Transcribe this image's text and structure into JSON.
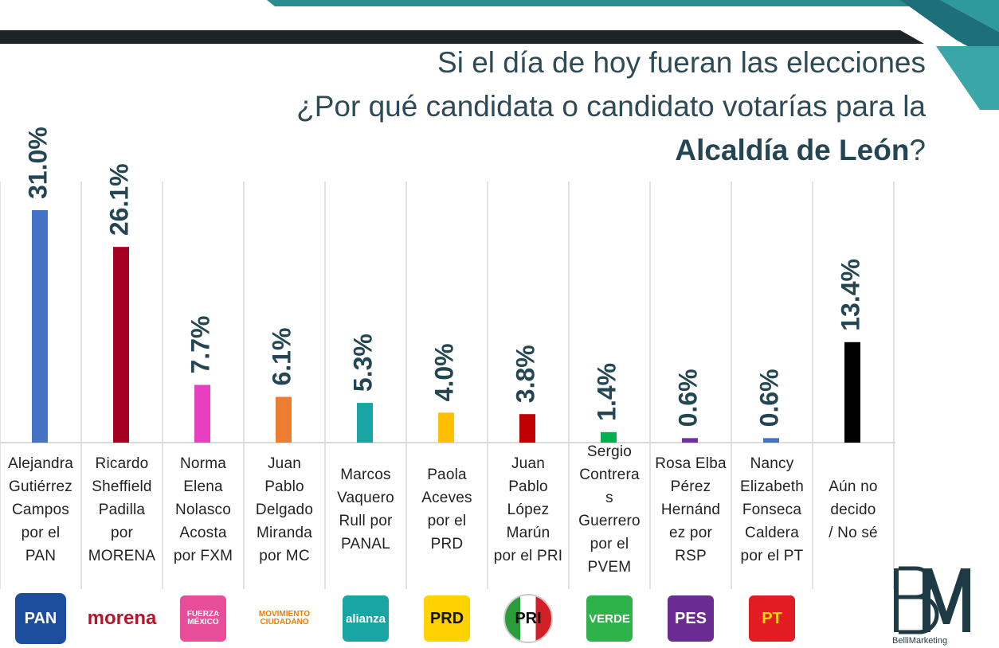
{
  "header": {
    "title_line1": "Si el día de hoy fueran las elecciones",
    "title_line2": "¿Por qué candidata o candidato votarías para la",
    "title_bold": "Alcaldía de León",
    "title_end": "?"
  },
  "chart_data": {
    "type": "bar",
    "title": "Si el día de hoy fueran las elecciones ¿Por qué candidata o candidato votarías para la Alcaldía de León?",
    "xlabel": "",
    "ylabel": "",
    "ylim": [
      0,
      31.0
    ],
    "grid": false,
    "categories": [
      "Alejandra Gutiérrez Campos por el PAN",
      "Ricardo Sheffield Padilla por MORENA",
      "Norma Elena Nolasco Acosta por FXM",
      "Juan Pablo Delgado Miranda por MC",
      "Marcos Vaquero Rull por PANAL",
      "Paola Aceves por el PRD",
      "Juan Pablo López Marún por el PRI",
      "Sergio Contreras Guerrero por el PVEM",
      "Rosa Elba Pérez Hernández por RSP",
      "Nancy Elizabeth Fonseca Caldera por el PT",
      "Aún no decido / No sé"
    ],
    "values": [
      31.0,
      26.1,
      7.7,
      6.1,
      5.3,
      4.0,
      3.8,
      1.4,
      0.6,
      0.6,
      13.4
    ],
    "value_labels": [
      "31.0%",
      "26.1%",
      "7.7%",
      "6.1%",
      "5.3%",
      "4.0%",
      "3.8%",
      "1.4%",
      "0.6%",
      "0.6%",
      "13.4%"
    ],
    "tick_labels": [
      "Alejandra\nGutiérrez\nCampos\npor el\nPAN",
      "Ricardo\nSheffield\nPadilla\npor\nMORENA",
      "Norma\nElena\nNolasco\nAcosta\npor FXM",
      "Juan\nPablo\nDelgado\nMiranda\npor MC",
      "Marcos\nVaquero\nRull por\nPANAL",
      "Paola\nAceves\npor el\nPRD",
      "Juan\nPablo\nLópez\nMarún\npor el PRI",
      "Sergio\nContrera\ns\nGuerrero\npor el\nPVEM",
      "Rosa Elba\nPérez\nHernánd\nez por\nRSP",
      "Nancy\nElizabeth\nFonseca\nCaldera\npor el PT",
      "Aún no\ndecido\n/ No sé"
    ],
    "colors": [
      "#4472c4",
      "#a50021",
      "#e83fc0",
      "#ed7d31",
      "#1aa5a5",
      "#ffc000",
      "#c00000",
      "#00b050",
      "#7030a0",
      "#4472c4",
      "#000000"
    ],
    "value_label_color": "#244652"
  },
  "logos": [
    {
      "name": "pan-logo",
      "text": "PAN",
      "bg": "#1d4e9e",
      "fg": "#ffffff"
    },
    {
      "name": "morena-logo",
      "text": "morena",
      "bg": "",
      "fg": "#b5162b"
    },
    {
      "name": "fuerza-mexico-logo",
      "text": "FUERZA MÉXICO",
      "bg": "#e84d9a",
      "fg": "#ffffff"
    },
    {
      "name": "movimiento-ciudadano-logo",
      "text": "MOVIMIENTO CIUDADANO",
      "bg": "",
      "fg": "#f07d00"
    },
    {
      "name": "nueva-alianza-logo",
      "text": "alianza",
      "bg": "#1aa5a5",
      "fg": "#ffffff"
    },
    {
      "name": "prd-logo",
      "text": "PRD",
      "bg": "#ffd200",
      "fg": "#111111"
    },
    {
      "name": "pri-logo",
      "text": "PRI",
      "bg": "",
      "fg": "#111111"
    },
    {
      "name": "verde-logo",
      "text": "VERDE",
      "bg": "#2eb34a",
      "fg": "#ffffff"
    },
    {
      "name": "pes-logo",
      "text": "PES",
      "bg": "#6a2c91",
      "fg": "#ffffff"
    },
    {
      "name": "pt-logo",
      "text": "PT",
      "bg": "#e31b23",
      "fg": "#ffd200"
    }
  ],
  "brand": {
    "name": "BelliMarketing"
  },
  "colors": {
    "title": "#2e4a55",
    "dark_band": "#1e2327",
    "teal": "#2a8c8e",
    "grid": "#d9d9d9"
  }
}
